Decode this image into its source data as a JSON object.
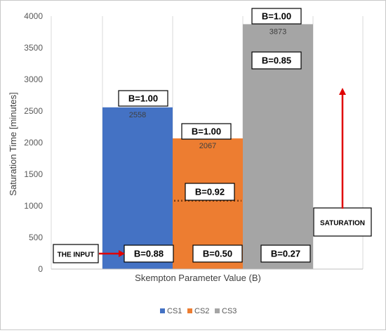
{
  "chart_data": {
    "type": "bar",
    "xlabel": "Skempton Parameter Value (B)",
    "ylabel": "Saturation Time [minutes]",
    "ylim": [
      0,
      4000
    ],
    "ytick_step": 500,
    "grid": "vertical-lines",
    "legend_position": "bottom",
    "series": [
      {
        "name": "CS1",
        "values": [
          2558
        ],
        "value_labels": [
          "2558"
        ],
        "color": "#4472C4"
      },
      {
        "name": "CS2",
        "values": [
          2067
        ],
        "value_labels": [
          "2067"
        ],
        "color": "#ED7D31"
      },
      {
        "name": "CS3",
        "values": [
          3873
        ],
        "value_labels": [
          "3873"
        ],
        "color": "#A5A5A5"
      }
    ],
    "annotations": {
      "cs1_top": "B=1.00",
      "cs1_bottom": "B=0.88",
      "cs2_top": "B=1.00",
      "cs2_mid": "B=0.92",
      "cs2_bottom": "B=0.50",
      "cs3_top": "B=1.00",
      "cs3_mid": "B=0.85",
      "cs3_bottom": "B=0.27",
      "input_label": "THE INPUT",
      "saturation_label": "SATURATION"
    },
    "dotted_line_value": 1080,
    "arrow_color": "#E00000"
  }
}
